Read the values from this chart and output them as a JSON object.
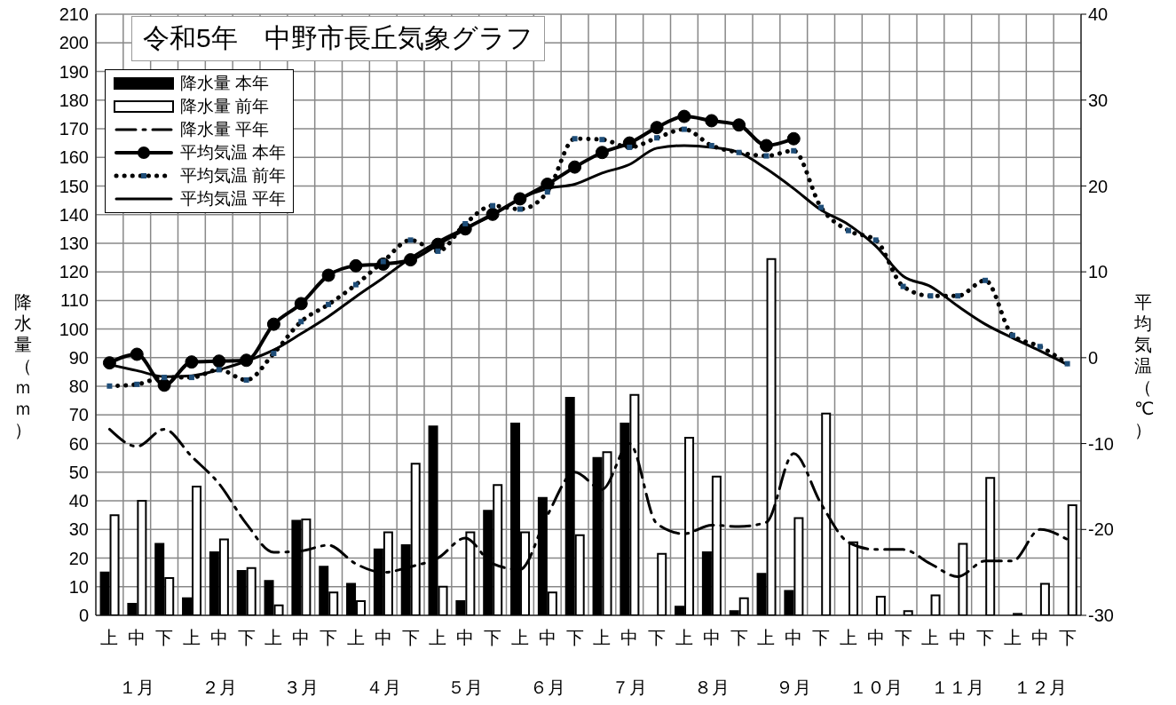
{
  "chart_data": {
    "type": "bar",
    "title": "令和5年　中野市長丘気象グラフ",
    "ylabel": "降水量（ｍｍ）",
    "y2label": "平均気温（℃）",
    "categories": [
      "上",
      "中",
      "下",
      "上",
      "中",
      "下",
      "上",
      "中",
      "下",
      "上",
      "中",
      "下",
      "上",
      "中",
      "下",
      "上",
      "中",
      "下",
      "上",
      "中",
      "下",
      "上",
      "中",
      "下",
      "上",
      "中",
      "下",
      "上",
      "中",
      "下",
      "上",
      "中",
      "下",
      "上",
      "中",
      "下"
    ],
    "annotations": [
      "１月",
      "２月",
      "３月",
      "４月",
      "５月",
      "６月",
      "７月",
      "８月",
      "９月",
      "１０月",
      "１１月",
      "１２月"
    ],
    "series": [
      {
        "name": "降水量 本年",
        "color": "#000000",
        "values": [
          15,
          4,
          25,
          6,
          22,
          15.5,
          12,
          33,
          17,
          11,
          23,
          24.5,
          66,
          5,
          36.5,
          67,
          41,
          76,
          55,
          67,
          0,
          3,
          22,
          1.5,
          14.5,
          8.5,
          null,
          null,
          null,
          null,
          null,
          null,
          null,
          null,
          null,
          null
        ]
      },
      {
        "name": "降水量 前年",
        "color": "#ffffff",
        "values": [
          35,
          40,
          13,
          45,
          26.5,
          16.5,
          3.5,
          33.5,
          8,
          5,
          29,
          53,
          10,
          29,
          45.5,
          29,
          8,
          28,
          57,
          77,
          21.5,
          62,
          48.5,
          6,
          124.5,
          34,
          70.5,
          25.5,
          6.5,
          1.5,
          7,
          25,
          48,
          0.5,
          11,
          38.5
        ]
      },
      {
        "name": "降水量 平年",
        "type": "line",
        "color": "#000000",
        "line_style": "dashed",
        "marker": "none",
        "values": [
          65,
          59,
          65,
          55.5,
          46,
          32,
          22,
          22.5,
          24.5,
          18,
          15,
          17,
          20,
          27,
          18,
          16,
          35,
          50,
          44,
          60,
          32,
          28.5,
          31.5,
          31,
          32.5,
          56.5,
          39,
          25.5,
          23,
          23,
          18,
          13.5,
          19,
          19,
          30,
          26.5
        ]
      },
      {
        "name": "平均気温 本年",
        "type": "line",
        "axis": "y2",
        "color": "#000000",
        "line_style": "solid",
        "marker": "circle",
        "values": [
          -0.6,
          0.4,
          -3.2,
          -0.5,
          -0.4,
          -0.3,
          3.9,
          6.3,
          9.6,
          10.7,
          10.9,
          11.4,
          13.2,
          15,
          16.7,
          18.5,
          20.2,
          22.2,
          23.9,
          25,
          26.8,
          28.1,
          27.6,
          27.1,
          24.7,
          25.5,
          null,
          null,
          null,
          null,
          null,
          null,
          null,
          null,
          null,
          null
        ]
      },
      {
        "name": "平均気温 前年",
        "type": "line",
        "axis": "y2",
        "color": "#1f4e79",
        "line_style": "dotted",
        "marker": "square",
        "values": [
          -3.3,
          -3.1,
          -2.3,
          -2.3,
          -1.4,
          -2.6,
          0.5,
          4.2,
          6.2,
          8.5,
          11.2,
          13.7,
          12.4,
          15.6,
          17.7,
          17.3,
          19.3,
          25.5,
          25.4,
          24.5,
          25.6,
          26.6,
          24.7,
          23.9,
          23.5,
          24.1,
          17.5,
          14.8,
          13.7,
          8.3,
          7.2,
          7.2,
          9,
          2.6,
          1.3,
          -0.7
        ]
      },
      {
        "name": "平均気温 平年",
        "type": "line",
        "axis": "y2",
        "color": "#000000",
        "line_style": "solid",
        "marker": "none",
        "values": [
          -0.8,
          -1.5,
          -2.2,
          -2.1,
          -1.4,
          -0.4,
          0.9,
          2.8,
          4.8,
          7.1,
          9.3,
          11.6,
          13.5,
          15.1,
          16.6,
          18.5,
          19.7,
          20.2,
          21.5,
          22.5,
          24.4,
          24.7,
          24.5,
          23.9,
          22,
          19.7,
          17.2,
          15.5,
          13,
          9.5,
          8.3,
          6,
          3.9,
          2.3,
          0.8,
          -0.8
        ]
      }
    ],
    "ylim": [
      0,
      210
    ],
    "yticks": [
      0,
      10,
      20,
      30,
      40,
      50,
      60,
      70,
      80,
      90,
      100,
      110,
      120,
      130,
      140,
      150,
      160,
      170,
      180,
      190,
      200,
      210
    ],
    "y2lim": [
      -30,
      40
    ],
    "y2ticks": [
      -30,
      -20,
      -10,
      0,
      10,
      20,
      30,
      40
    ],
    "grid": true,
    "legend": "top left"
  }
}
